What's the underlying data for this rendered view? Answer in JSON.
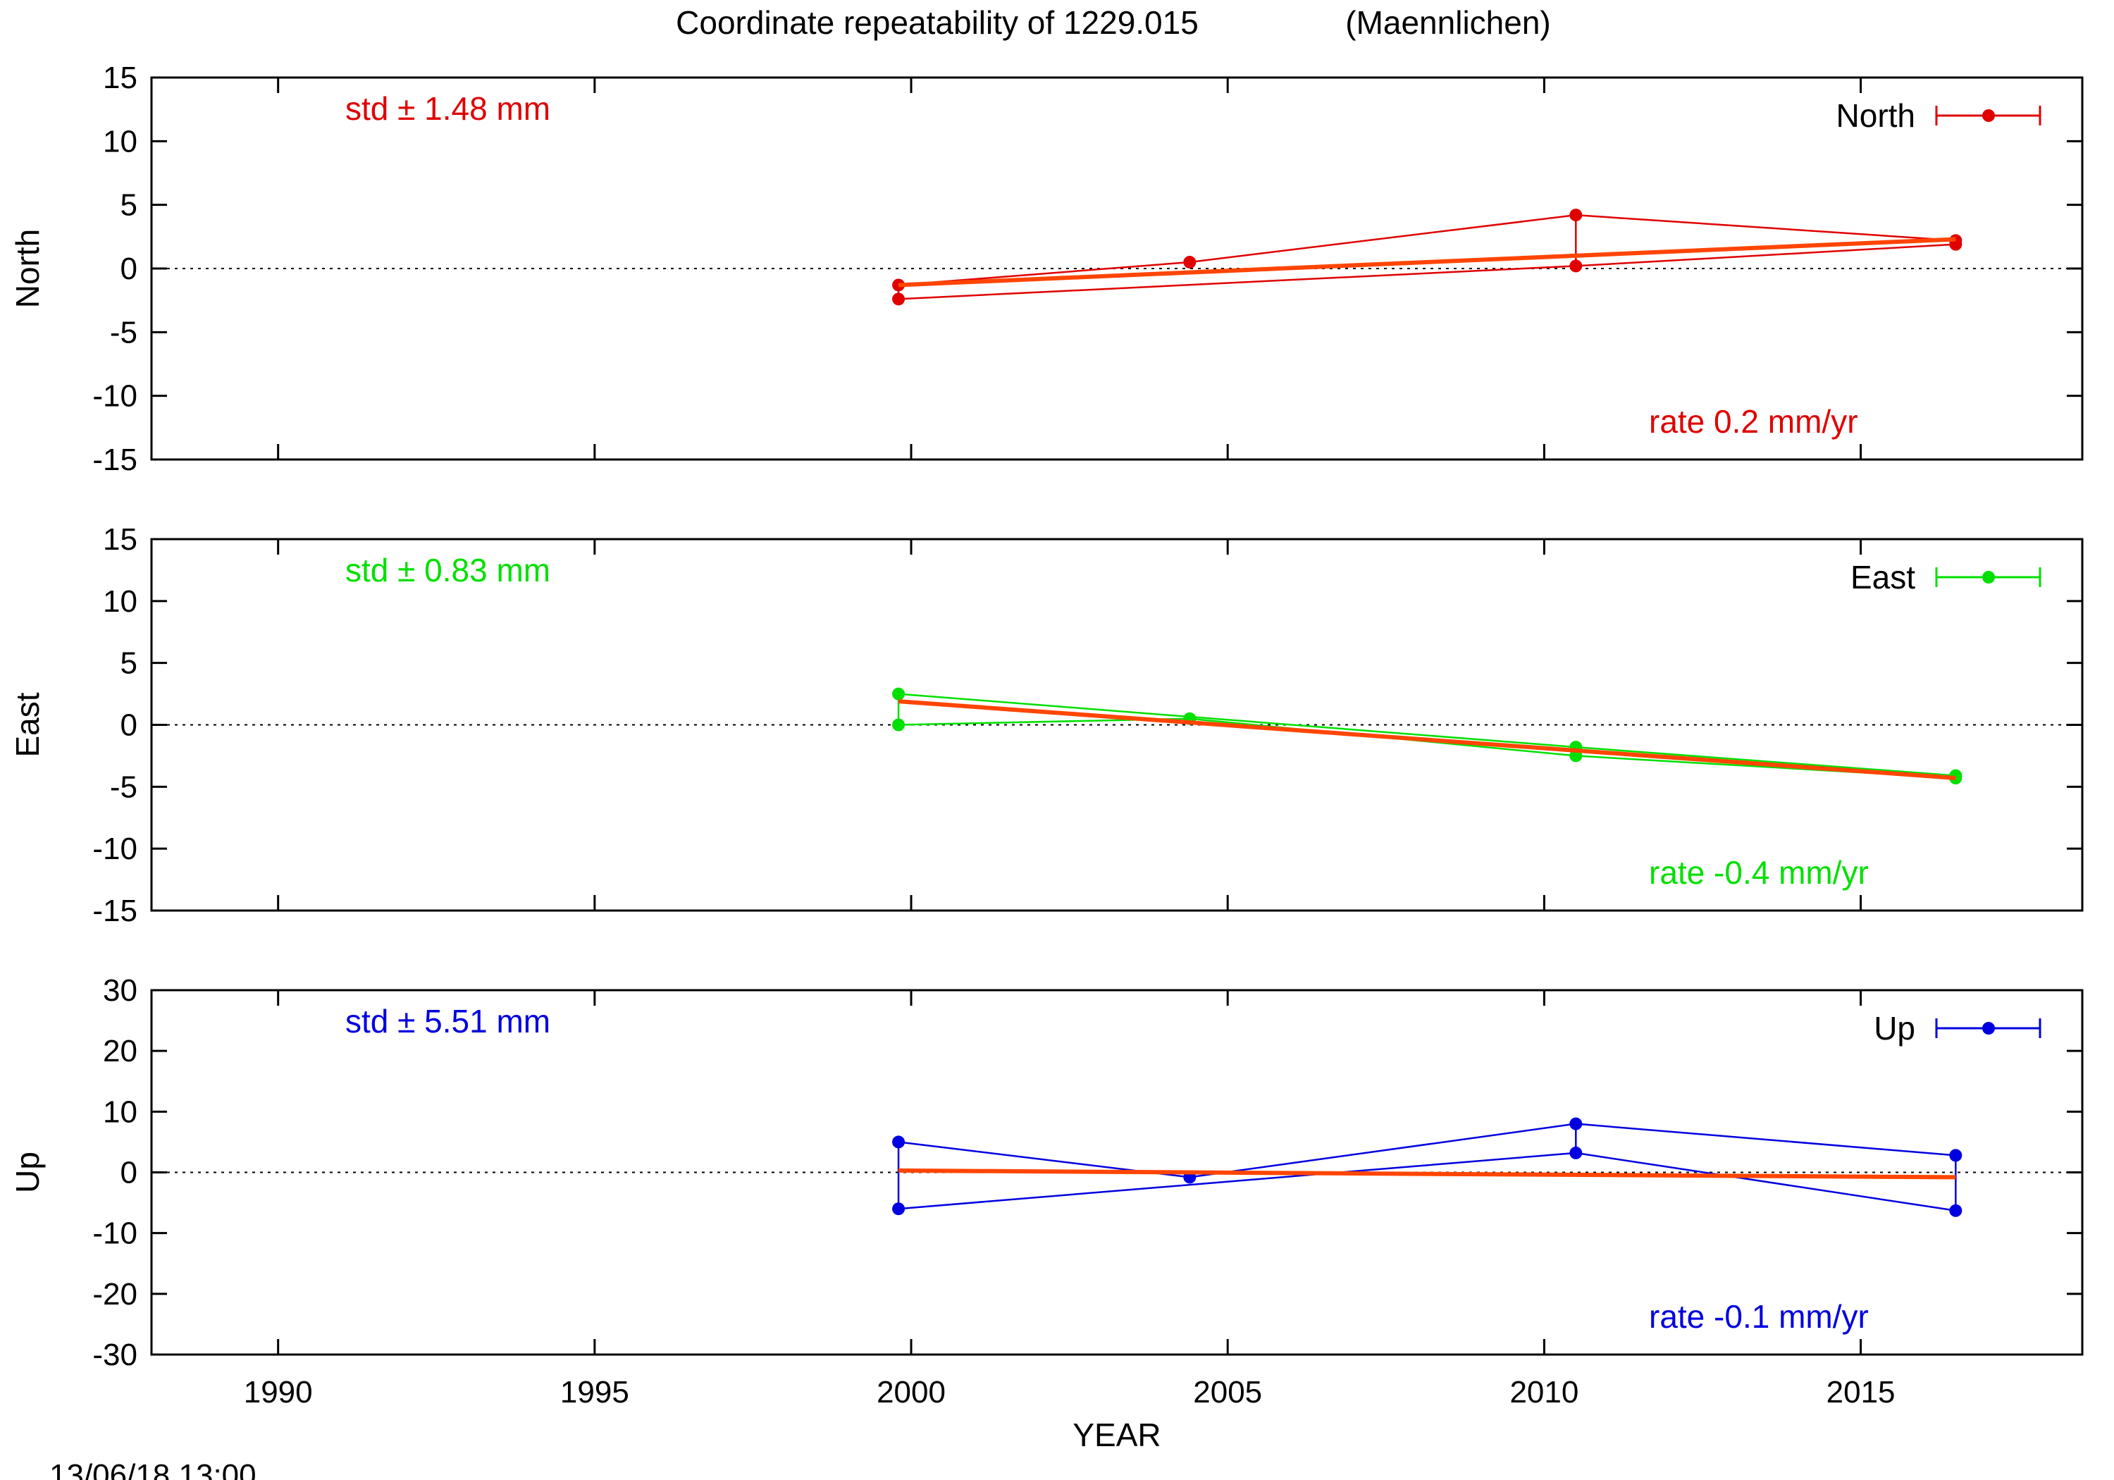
{
  "chart_data": {
    "type": "line",
    "title": "Coordinate repeatability of 1229.015",
    "title_site": "(Maennlichen)",
    "xlabel": "YEAR",
    "xlim": [
      1988,
      2018.5
    ],
    "x_ticks": [
      1990,
      1995,
      2000,
      2005,
      2010,
      2015
    ],
    "timestamp": "13/06/18 13:00",
    "grid": false,
    "legend_position": "top-right",
    "trend_color": "#ff4500",
    "panels": [
      {
        "name": "North",
        "ylabel": "North",
        "color": "#e00000",
        "ylim": [
          -15,
          15
        ],
        "y_ticks": [
          15,
          10,
          5,
          0,
          -5,
          -10,
          -15
        ],
        "std_label": "std ± 1.48 mm",
        "rate_label": "rate  0.2 mm/yr",
        "series": [
          {
            "name": "North",
            "x": [
              1999.8,
              2004.4,
              2010.5,
              2016.5
            ],
            "y": [
              -1.3,
              0.5,
              4.2,
              2.2
            ]
          },
          {
            "name": "",
            "x": [
              1999.8,
              2010.5,
              2016.5
            ],
            "y": [
              -2.4,
              0.2,
              1.9
            ]
          }
        ],
        "trend": {
          "x": [
            1999.8,
            2016.5
          ],
          "y": [
            -1.3,
            2.3
          ]
        }
      },
      {
        "name": "East",
        "ylabel": "East",
        "color": "#00e000",
        "ylim": [
          -15,
          15
        ],
        "y_ticks": [
          15,
          10,
          5,
          0,
          -5,
          -10,
          -15
        ],
        "std_label": "std ± 0.83 mm",
        "rate_label": "rate -0.4 mm/yr",
        "series": [
          {
            "name": "East",
            "x": [
              1999.8,
              2004.4,
              2010.5,
              2016.5
            ],
            "y": [
              0.0,
              0.5,
              -2.5,
              -4.3
            ]
          },
          {
            "name": "",
            "x": [
              1999.8,
              2010.5,
              2016.5
            ],
            "y": [
              2.5,
              -1.8,
              -4.1
            ]
          }
        ],
        "trend": {
          "x": [
            1999.8,
            2016.5
          ],
          "y": [
            1.9,
            -4.3
          ]
        }
      },
      {
        "name": "Up",
        "ylabel": "Up",
        "color": "#0000e0",
        "ylim": [
          -30,
          30
        ],
        "y_ticks": [
          30,
          20,
          10,
          0,
          -10,
          -20,
          -30
        ],
        "std_label": "std ± 5.51 mm",
        "rate_label": "rate -0.1 mm/yr",
        "series": [
          {
            "name": "Up",
            "x": [
              1999.8,
              2004.4,
              2010.5,
              2016.5
            ],
            "y": [
              5.0,
              -0.8,
              8.0,
              2.8
            ]
          },
          {
            "name": "",
            "x": [
              1999.8,
              2010.5,
              2016.5
            ],
            "y": [
              -6.0,
              3.2,
              -6.3
            ]
          }
        ],
        "trend": {
          "x": [
            1999.8,
            2016.5
          ],
          "y": [
            0.3,
            -0.8
          ]
        }
      }
    ]
  }
}
